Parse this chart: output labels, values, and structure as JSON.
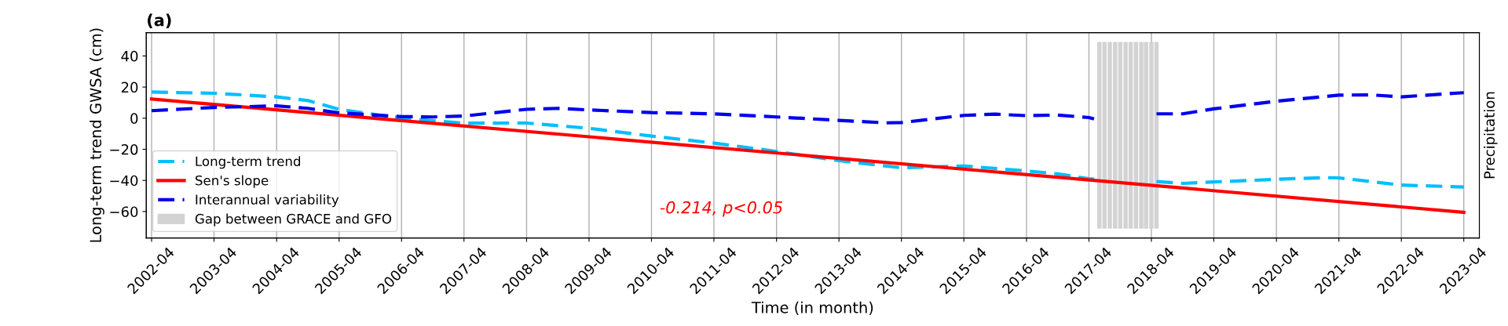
{
  "chart_data": {
    "type": "line",
    "title": "(a)",
    "xlabel": "Time (in month)",
    "ylabel": "Long-term trend GWSA (cm)",
    "y2label": "Precipitation",
    "xlim": [
      "2002-03",
      "2023-07"
    ],
    "xticks": [
      {
        "value": "2002-04",
        "label": "2002-04"
      },
      {
        "value": "2003-04",
        "label": "2003-04"
      },
      {
        "value": "2004-04",
        "label": "2004-04"
      },
      {
        "value": "2005-04",
        "label": "2005-04"
      },
      {
        "value": "2006-04",
        "label": "2006-04"
      },
      {
        "value": "2007-04",
        "label": "2007-04"
      },
      {
        "value": "2008-04",
        "label": "2008-04"
      },
      {
        "value": "2009-04",
        "label": "2009-04"
      },
      {
        "value": "2010-04",
        "label": "2010-04"
      },
      {
        "value": "2011-04",
        "label": "2011-04"
      },
      {
        "value": "2012-04",
        "label": "2012-04"
      },
      {
        "value": "2013-04",
        "label": "2013-04"
      },
      {
        "value": "2014-04",
        "label": "2014-04"
      },
      {
        "value": "2015-04",
        "label": "2015-04"
      },
      {
        "value": "2016-04",
        "label": "2016-04"
      },
      {
        "value": "2017-04",
        "label": "2017-04"
      },
      {
        "value": "2018-04",
        "label": "2018-04"
      },
      {
        "value": "2019-04",
        "label": "2019-04"
      },
      {
        "value": "2020-04",
        "label": "2020-04"
      },
      {
        "value": "2021-04",
        "label": "2021-04"
      },
      {
        "value": "2022-04",
        "label": "2022-04"
      },
      {
        "value": "2023-04",
        "label": "2023-04"
      }
    ],
    "ylim": [
      -77,
      55
    ],
    "yticks": [
      -60,
      -40,
      -20,
      0,
      20,
      40
    ],
    "grid": "x",
    "legend": "lower left",
    "marker": "none",
    "series": [
      {
        "name": "Long-term trend",
        "type": "line",
        "line_style": "dashed",
        "color": "#00bfff",
        "x": [
          "2002-04",
          "2003-04",
          "2004-04",
          "2004-10",
          "2005-04",
          "2006-04",
          "2007-04",
          "2008-04",
          "2009-04",
          "2010-04",
          "2011-04",
          "2012-04",
          "2013-04",
          "2014-04",
          "2015-04",
          "2016-04",
          "2016-10",
          "2017-04",
          "2017-05",
          "2017-11",
          "2018-05",
          "2018-10",
          "2019-04",
          "2020-04",
          "2021-01",
          "2021-04",
          "2021-10",
          "2022-04",
          "2023-04"
        ],
        "values": [
          16.8,
          16,
          13.7,
          11.3,
          5.7,
          0,
          -3.2,
          -3.1,
          -6.5,
          -11.5,
          -16,
          -21.4,
          -27.3,
          -31.9,
          -30.7,
          -33.9,
          -35.8,
          -38.9,
          -39.2,
          null,
          -40.7,
          -41.9,
          -41,
          -39.3,
          -38.2,
          -38.4,
          -40.7,
          -43,
          -44.2
        ]
      },
      {
        "name": "Sen's slope",
        "type": "line",
        "line_style": "solid",
        "color": "#ff0000",
        "x": [
          "2002-04",
          "2023-04"
        ],
        "values": [
          12.3,
          -60.5
        ]
      },
      {
        "name": "Interannual variability",
        "type": "line",
        "line_style": "dashed",
        "color": "#0000ee",
        "x": [
          "2002-04",
          "2003-04",
          "2004-04",
          "2004-10",
          "2005-04",
          "2006-04",
          "2006-10",
          "2007-04",
          "2008-04",
          "2008-10",
          "2009-04",
          "2010-04",
          "2011-04",
          "2012-04",
          "2013-04",
          "2014-01",
          "2014-04",
          "2015-04",
          "2015-10",
          "2016-04",
          "2016-10",
          "2017-04",
          "2017-05",
          "2017-11",
          "2018-05",
          "2018-10",
          "2019-04",
          "2020-04",
          "2021-04",
          "2021-10",
          "2022-04",
          "2023-04"
        ],
        "values": [
          4.8,
          6.9,
          7.9,
          6.3,
          3.4,
          1,
          0.8,
          1.4,
          5.7,
          6.3,
          5.3,
          3.6,
          2.8,
          0.8,
          -1.4,
          -3,
          -2.8,
          1.8,
          2.6,
          1.6,
          2,
          0.4,
          -0.5,
          null,
          2.8,
          2.8,
          6,
          10.9,
          14.8,
          15,
          13.7,
          16.4
        ]
      },
      {
        "name": "Gap between GRACE and GFO",
        "type": "bar",
        "color": "#d3d3d3",
        "x": [
          "2017-06",
          "2017-07",
          "2017-08",
          "2017-09",
          "2017-10",
          "2017-11",
          "2017-12",
          "2018-01",
          "2018-02",
          "2018-03",
          "2018-04",
          "2018-05"
        ],
        "values": [
          120,
          120,
          120,
          120,
          120,
          120,
          120,
          120,
          120,
          120,
          120,
          120
        ],
        "base": [
          -71,
          -71,
          -71,
          -71,
          -71,
          -71,
          -71,
          -71,
          -71,
          -71,
          -71,
          -71
        ]
      }
    ],
    "annotations": [
      "-0.214, p<0.05"
    ]
  }
}
